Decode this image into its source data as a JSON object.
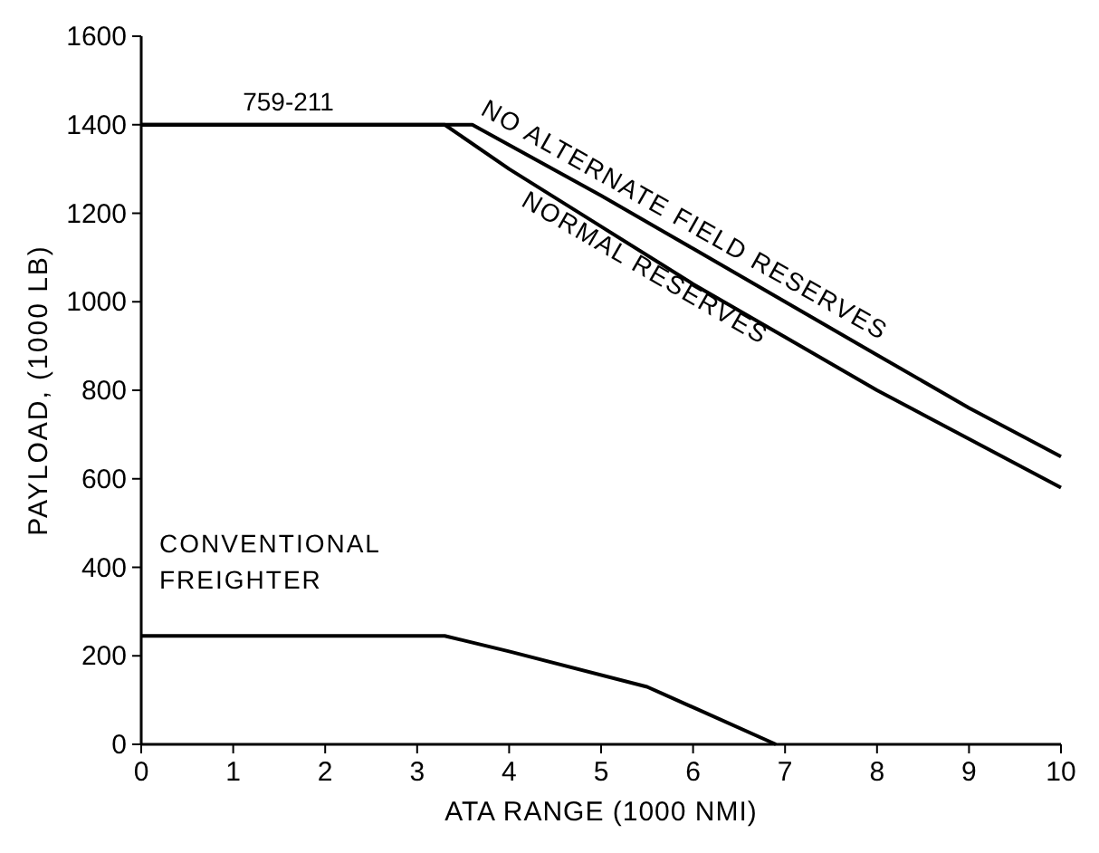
{
  "chart_data": {
    "type": "line",
    "xlabel": "ATA RANGE (1000 NMI)",
    "ylabel": "PAYLOAD, (1000 LB)",
    "xlim": [
      0,
      10
    ],
    "xticks": [
      0,
      1,
      2,
      3,
      4,
      5,
      6,
      7,
      8,
      9,
      10
    ],
    "ylim": [
      0,
      1600
    ],
    "yticks": [
      0,
      200,
      400,
      600,
      800,
      1000,
      1200,
      1400,
      1600
    ],
    "grid": false,
    "marker": "none",
    "line_style": "solid",
    "annotations": [
      {
        "text": "759-211",
        "x": 1.6,
        "y": 1400
      }
    ],
    "series": [
      {
        "name": "NO ALTERNATE FIELD RESERVES",
        "color": "#000000",
        "x": [
          0,
          3.6,
          5,
          6,
          7,
          8,
          9,
          10
        ],
        "values": [
          1400,
          1400,
          1240,
          1120,
          1000,
          880,
          760,
          650
        ]
      },
      {
        "name": "NORMAL RESERVES",
        "color": "#000000",
        "x": [
          0,
          3.3,
          4,
          5,
          6,
          7,
          8,
          9,
          10
        ],
        "values": [
          1400,
          1400,
          1300,
          1170,
          1040,
          920,
          800,
          690,
          580
        ]
      },
      {
        "name": "CONVENTIONAL FREIGHTER",
        "color": "#000000",
        "x": [
          0,
          3.3,
          4,
          5.5,
          6.9
        ],
        "values": [
          245,
          245,
          210,
          130,
          0
        ]
      }
    ]
  }
}
